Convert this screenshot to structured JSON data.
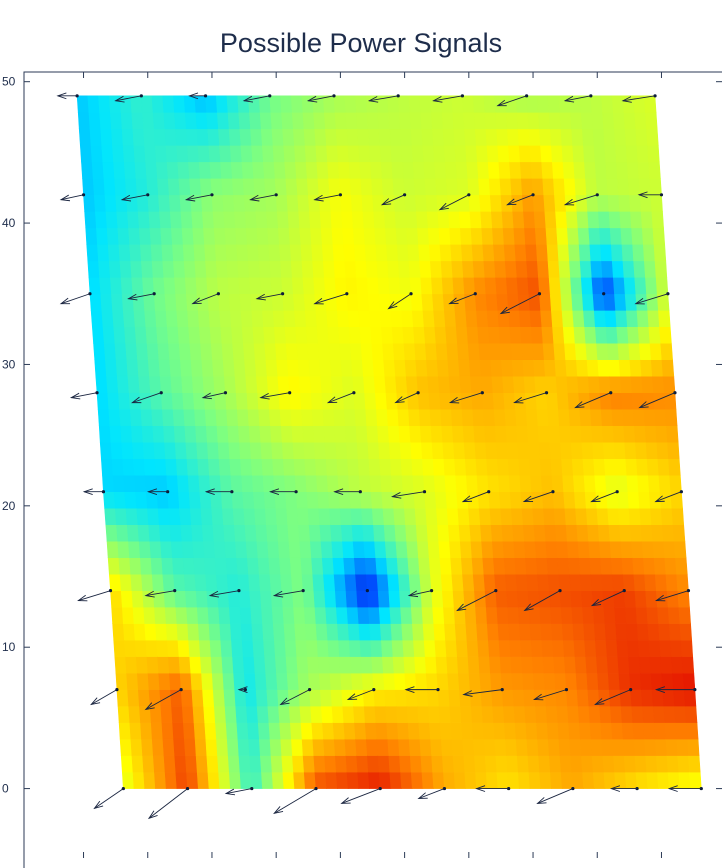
{
  "chart_data": {
    "type": "heatmap",
    "title": "Possible Power Signals",
    "xlabel": "",
    "ylabel": "",
    "colormap": "jet",
    "colormap_colors": [
      "#00008f",
      "#0050ff",
      "#00e5ff",
      "#7fff7f",
      "#ffff00",
      "#ff8000",
      "#e00000"
    ],
    "y_ticks": [
      0,
      10,
      20,
      30,
      40,
      50
    ],
    "x_ticks": [],
    "ylim": [
      -3,
      55
    ],
    "x_index_range": [
      -0.6,
      9.6
    ],
    "grid_rows_y": [
      0,
      7,
      14,
      21,
      28,
      35,
      42,
      49
    ],
    "row_x_shift": [
      0.62,
      0.52,
      0.42,
      0.31,
      0.21,
      0.1,
      0.0,
      -0.1
    ],
    "values": [
      [
        0.62,
        0.92,
        0.4,
        0.9,
        0.97,
        0.78,
        0.7,
        0.78,
        0.7,
        0.64
      ],
      [
        0.72,
        0.88,
        0.35,
        0.55,
        0.68,
        0.72,
        0.8,
        0.82,
        0.94,
        0.98
      ],
      [
        0.72,
        0.45,
        0.38,
        0.5,
        0.08,
        0.62,
        0.88,
        0.9,
        0.92,
        0.82
      ],
      [
        0.32,
        0.3,
        0.45,
        0.5,
        0.58,
        0.62,
        0.7,
        0.75,
        0.62,
        0.72
      ],
      [
        0.32,
        0.45,
        0.55,
        0.68,
        0.62,
        0.75,
        0.78,
        0.72,
        0.84,
        0.82
      ],
      [
        0.32,
        0.48,
        0.58,
        0.6,
        0.68,
        0.65,
        0.82,
        0.9,
        0.12,
        0.62
      ],
      [
        0.3,
        0.38,
        0.52,
        0.55,
        0.66,
        0.6,
        0.62,
        0.8,
        0.58,
        0.6
      ],
      [
        0.3,
        0.4,
        0.28,
        0.48,
        0.55,
        0.58,
        0.6,
        0.55,
        0.58,
        0.62
      ]
    ],
    "vectors": {
      "dx": [
        [
          -0.45,
          -0.6,
          -0.4,
          -0.65,
          -0.6,
          -0.4,
          -0.5,
          -0.55,
          -0.4,
          -0.5
        ],
        [
          -0.4,
          -0.55,
          -0.1,
          -0.45,
          -0.4,
          -0.5,
          -0.6,
          -0.5,
          -0.55,
          -0.6
        ],
        [
          -0.5,
          -0.45,
          -0.45,
          -0.45,
          0.0,
          -0.35,
          -0.6,
          -0.55,
          -0.5,
          -0.5
        ],
        [
          -0.3,
          -0.3,
          -0.4,
          -0.4,
          -0.4,
          -0.5,
          -0.4,
          -0.45,
          -0.4,
          -0.4
        ],
        [
          -0.4,
          -0.45,
          -0.35,
          -0.45,
          -0.4,
          -0.35,
          -0.5,
          -0.5,
          -0.55,
          -0.55
        ],
        [
          -0.45,
          -0.4,
          -0.4,
          -0.4,
          -0.5,
          -0.35,
          -0.4,
          -0.6,
          0.0,
          -0.5
        ],
        [
          -0.35,
          -0.4,
          -0.4,
          -0.4,
          -0.4,
          -0.35,
          -0.45,
          -0.4,
          -0.5,
          -0.35
        ],
        [
          -0.3,
          -0.4,
          -0.25,
          -0.4,
          -0.4,
          -0.45,
          -0.45,
          -0.45,
          -0.4,
          -0.5
        ]
      ],
      "dy": [
        [
          -0.2,
          -0.3,
          -0.05,
          -0.25,
          -0.15,
          -0.1,
          0.0,
          -0.15,
          0.0,
          0.0
        ],
        [
          -0.15,
          -0.2,
          0.0,
          -0.15,
          -0.1,
          0.0,
          -0.05,
          -0.1,
          -0.15,
          0.0
        ],
        [
          -0.1,
          -0.05,
          -0.05,
          -0.05,
          0.0,
          -0.05,
          -0.2,
          -0.2,
          -0.15,
          -0.1
        ],
        [
          0.0,
          0.0,
          0.0,
          0.0,
          0.0,
          -0.05,
          -0.1,
          -0.1,
          -0.1,
          -0.1
        ],
        [
          -0.05,
          -0.1,
          -0.05,
          -0.05,
          -0.1,
          -0.1,
          -0.1,
          -0.1,
          -0.15,
          -0.15
        ],
        [
          -0.1,
          -0.05,
          -0.1,
          -0.05,
          -0.1,
          -0.15,
          -0.1,
          -0.2,
          0.0,
          -0.1
        ],
        [
          -0.05,
          -0.05,
          -0.05,
          -0.05,
          -0.05,
          -0.1,
          -0.15,
          -0.1,
          -0.1,
          0.0
        ],
        [
          0.0,
          -0.05,
          0.0,
          -0.05,
          -0.05,
          -0.05,
          -0.05,
          -0.1,
          -0.05,
          -0.05
        ]
      ]
    },
    "grid": false,
    "legend": "none"
  }
}
